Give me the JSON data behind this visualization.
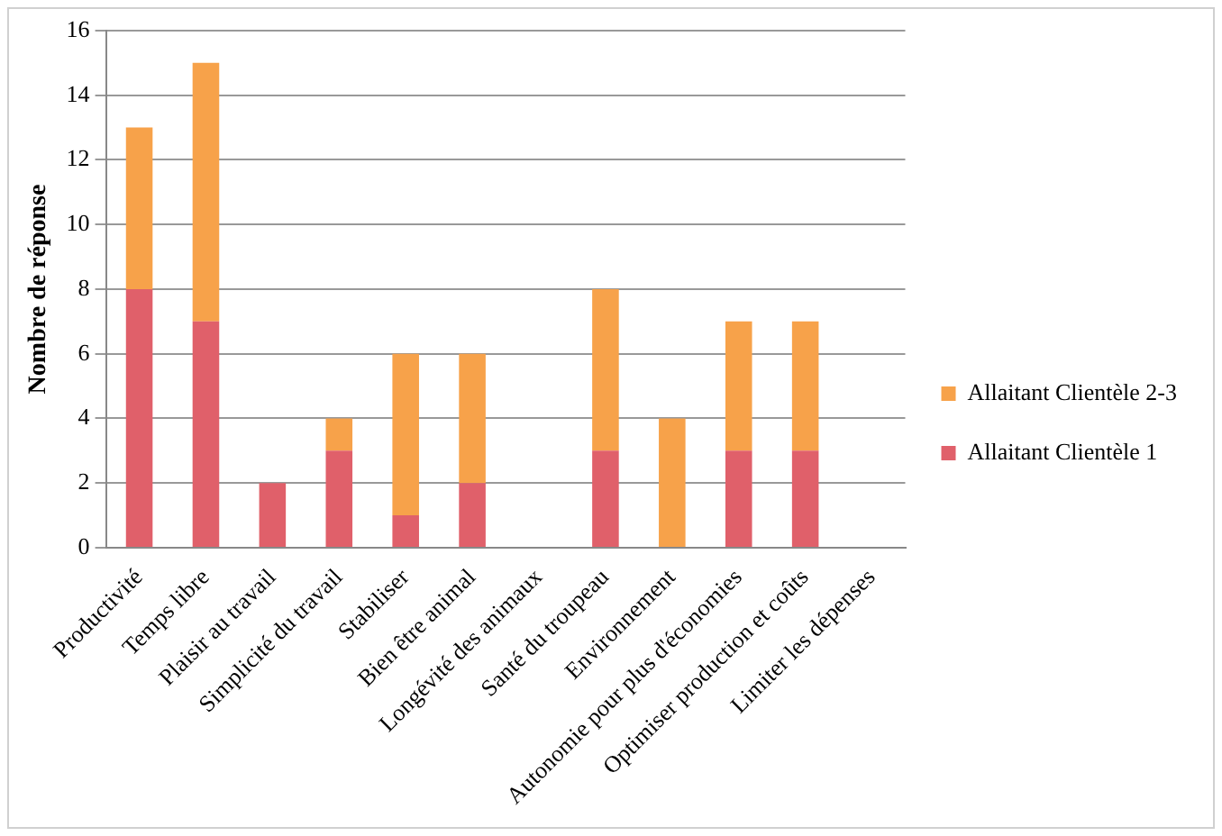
{
  "chart_data": {
    "type": "bar",
    "stacked": true,
    "ylabel": "Nombre de réponse",
    "categories": [
      "Productivité",
      "Temps libre",
      "Plaisir au travail",
      "Simplicité du travail",
      "Stabiliser",
      "Bien être animal",
      "Longévité des animaux",
      "Santé du troupeau",
      "Environnement",
      "Autonomie pour plus d'économies",
      "Optimiser production et coûts",
      "Limiter les dépenses"
    ],
    "series": [
      {
        "name": "Allaitant Clientèle 1",
        "color": "#e0606a",
        "values": [
          8,
          7,
          2,
          3,
          1,
          2,
          0,
          3,
          0,
          3,
          3,
          0
        ]
      },
      {
        "name": "Allaitant Clientèle 2-3",
        "color": "#f7a24a",
        "values": [
          5,
          8,
          0,
          1,
          5,
          4,
          0,
          5,
          4,
          4,
          4,
          0
        ]
      }
    ],
    "ylim": [
      0,
      16
    ],
    "yticks": [
      0,
      2,
      4,
      6,
      8,
      10,
      12,
      14,
      16
    ],
    "grid": "y",
    "legend": "right"
  }
}
